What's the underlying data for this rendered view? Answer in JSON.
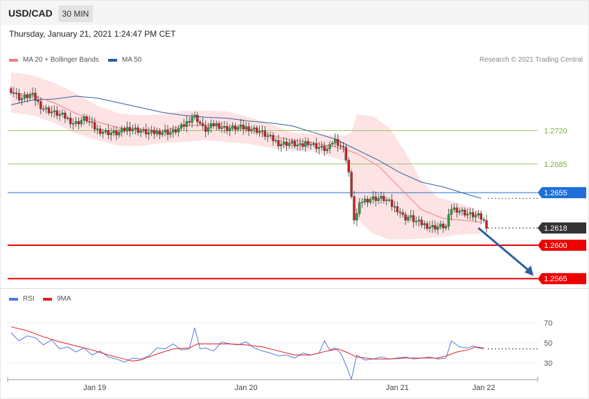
{
  "header": {
    "symbol": "USD/CAD",
    "timeframe": "30 MIN",
    "datetime": "Thursday, January 21, 2021 1:24:47 PM CET",
    "credit": "Research © 2021 Trading Central"
  },
  "legend": {
    "items": [
      {
        "label": "MA 20 + Bollinger Bands",
        "color": "#f08080"
      },
      {
        "label": "MA 50",
        "color": "#2e5f9e"
      }
    ]
  },
  "rsi_legend": {
    "items": [
      {
        "label": "RSI",
        "color": "#5577dd"
      },
      {
        "label": "9MA",
        "color": "#e02020"
      }
    ]
  },
  "chart_data": [
    {
      "type": "candlestick",
      "title": "USD/CAD",
      "x_ticks": [
        "Jan 19",
        "Jan 20",
        "Jan 21",
        "Jan 22"
      ],
      "ylim": [
        1.2555,
        1.279
      ],
      "levels": [
        {
          "value": 1.272,
          "label": "1.2720",
          "style": "resistance",
          "color": "#7cb342"
        },
        {
          "value": 1.2685,
          "label": "1.2685",
          "style": "resistance",
          "color": "#7cb342"
        },
        {
          "value": 1.2655,
          "label": "1.2655",
          "style": "pivot",
          "color": "#1e6fd9"
        },
        {
          "value": 1.2618,
          "label": "1.2618",
          "style": "last-price",
          "color": "#333333"
        },
        {
          "value": 1.26,
          "label": "1.2600",
          "style": "support",
          "color": "#ee0000"
        },
        {
          "value": 1.2565,
          "label": "1.2565",
          "style": "support",
          "color": "#ee0000"
        }
      ],
      "close_path": [
        [
          0,
          1.2764
        ],
        [
          4,
          1.2753
        ],
        [
          8,
          1.2758
        ],
        [
          12,
          1.2744
        ],
        [
          16,
          1.2739
        ],
        [
          20,
          1.2735
        ],
        [
          24,
          1.2727
        ],
        [
          28,
          1.2733
        ],
        [
          32,
          1.2721
        ],
        [
          36,
          1.2718
        ],
        [
          40,
          1.2717
        ],
        [
          44,
          1.2723
        ],
        [
          48,
          1.272
        ],
        [
          52,
          1.2717
        ],
        [
          56,
          1.2719
        ],
        [
          60,
          1.2718
        ],
        [
          64,
          1.2724
        ],
        [
          68,
          1.2736
        ],
        [
          70,
          1.273
        ],
        [
          72,
          1.272
        ],
        [
          76,
          1.2727
        ],
        [
          80,
          1.2722
        ],
        [
          84,
          1.2723
        ],
        [
          88,
          1.2723
        ],
        [
          92,
          1.272
        ],
        [
          96,
          1.2713
        ],
        [
          100,
          1.2706
        ],
        [
          104,
          1.2707
        ],
        [
          108,
          1.2703
        ],
        [
          110,
          1.2709
        ],
        [
          112,
          1.2705
        ],
        [
          116,
          1.2701
        ],
        [
          118,
          1.27
        ],
        [
          120,
          1.2711
        ],
        [
          122,
          1.2706
        ],
        [
          124,
          1.2699
        ],
        [
          126,
          1.2669
        ],
        [
          127,
          1.2628
        ],
        [
          128,
          1.2628
        ],
        [
          130,
          1.2646
        ],
        [
          134,
          1.2649
        ],
        [
          138,
          1.2649
        ],
        [
          140,
          1.2646
        ],
        [
          142,
          1.264
        ],
        [
          144,
          1.2637
        ],
        [
          146,
          1.2628
        ],
        [
          148,
          1.263
        ],
        [
          150,
          1.2625
        ],
        [
          154,
          1.2621
        ],
        [
          156,
          1.2619
        ],
        [
          158,
          1.2619
        ],
        [
          160,
          1.262
        ],
        [
          162,
          1.2619
        ],
        [
          163,
          1.2639
        ],
        [
          166,
          1.2637
        ],
        [
          170,
          1.2632
        ],
        [
          174,
          1.263
        ],
        [
          176,
          1.2623
        ],
        [
          177,
          1.2618
        ]
      ],
      "ma50_path": [
        [
          0,
          1.2747
        ],
        [
          8,
          1.2752
        ],
        [
          16,
          1.2753
        ],
        [
          24,
          1.2756
        ],
        [
          32,
          1.2754
        ],
        [
          40,
          1.2749
        ],
        [
          48,
          1.2744
        ],
        [
          56,
          1.2739
        ],
        [
          64,
          1.2736
        ],
        [
          72,
          1.2734
        ],
        [
          80,
          1.2733
        ],
        [
          88,
          1.273
        ],
        [
          96,
          1.2728
        ],
        [
          104,
          1.2725
        ],
        [
          112,
          1.2718
        ],
        [
          120,
          1.2711
        ],
        [
          128,
          1.27
        ],
        [
          136,
          1.2689
        ],
        [
          144,
          1.2676
        ],
        [
          152,
          1.2666
        ],
        [
          160,
          1.2661
        ],
        [
          168,
          1.2654
        ],
        [
          174,
          1.2649
        ]
      ],
      "ma20_path": [
        [
          0,
          1.276
        ],
        [
          8,
          1.2757
        ],
        [
          16,
          1.2749
        ],
        [
          24,
          1.2738
        ],
        [
          32,
          1.2729
        ],
        [
          40,
          1.2723
        ],
        [
          48,
          1.2721
        ],
        [
          56,
          1.272
        ],
        [
          64,
          1.2725
        ],
        [
          72,
          1.2726
        ],
        [
          80,
          1.2724
        ],
        [
          88,
          1.2721
        ],
        [
          96,
          1.2715
        ],
        [
          104,
          1.271
        ],
        [
          112,
          1.2707
        ],
        [
          120,
          1.2703
        ],
        [
          124,
          1.27
        ],
        [
          128,
          1.2696
        ],
        [
          136,
          1.2683
        ],
        [
          144,
          1.266
        ],
        [
          152,
          1.2637
        ],
        [
          160,
          1.2628
        ],
        [
          168,
          1.2626
        ],
        [
          174,
          1.2624
        ]
      ],
      "bb_upper_path": [
        [
          0,
          1.2781
        ],
        [
          8,
          1.2778
        ],
        [
          16,
          1.277
        ],
        [
          24,
          1.2759
        ],
        [
          32,
          1.2746
        ],
        [
          40,
          1.2738
        ],
        [
          48,
          1.2736
        ],
        [
          56,
          1.2737
        ],
        [
          64,
          1.2741
        ],
        [
          72,
          1.2741
        ],
        [
          80,
          1.274
        ],
        [
          88,
          1.2734
        ],
        [
          96,
          1.2727
        ],
        [
          104,
          1.2718
        ],
        [
          112,
          1.2716
        ],
        [
          120,
          1.2715
        ],
        [
          124,
          1.2715
        ],
        [
          126,
          1.2718
        ],
        [
          128,
          1.2737
        ],
        [
          134,
          1.2735
        ],
        [
          140,
          1.2723
        ],
        [
          146,
          1.2697
        ],
        [
          152,
          1.2667
        ],
        [
          158,
          1.265
        ],
        [
          166,
          1.2644
        ],
        [
          172,
          1.2637
        ],
        [
          174,
          1.2635
        ]
      ],
      "bb_lower_path": [
        [
          0,
          1.2739
        ],
        [
          8,
          1.2736
        ],
        [
          16,
          1.2728
        ],
        [
          24,
          1.2717
        ],
        [
          32,
          1.271
        ],
        [
          40,
          1.2704
        ],
        [
          48,
          1.2704
        ],
        [
          56,
          1.2707
        ],
        [
          64,
          1.2708
        ],
        [
          72,
          1.271
        ],
        [
          80,
          1.2708
        ],
        [
          88,
          1.2706
        ],
        [
          96,
          1.2702
        ],
        [
          104,
          1.2699
        ],
        [
          112,
          1.2698
        ],
        [
          120,
          1.2691
        ],
        [
          124,
          1.2688
        ],
        [
          126,
          1.267
        ],
        [
          128,
          1.2628
        ],
        [
          134,
          1.2612
        ],
        [
          140,
          1.2606
        ],
        [
          146,
          1.2606
        ],
        [
          152,
          1.2607
        ],
        [
          158,
          1.2608
        ],
        [
          166,
          1.2611
        ],
        [
          172,
          1.2612
        ],
        [
          174,
          1.2612
        ]
      ],
      "forecast_arrow": {
        "from": [
          173,
          1.2618
        ],
        "to": [
          188,
          1.2565
        ]
      }
    },
    {
      "type": "line",
      "title": "RSI",
      "ylim": [
        15,
        85
      ],
      "y_ticks": [
        30,
        50,
        70
      ],
      "series": [
        {
          "name": "RSI",
          "color": "#5577dd",
          "points": [
            [
              0,
              60
            ],
            [
              3,
              52
            ],
            [
              6,
              57
            ],
            [
              9,
              55
            ],
            [
              12,
              48
            ],
            [
              15,
              53
            ],
            [
              18,
              44
            ],
            [
              21,
              46
            ],
            [
              24,
              41
            ],
            [
              27,
              45
            ],
            [
              30,
              38
            ],
            [
              33,
              42
            ],
            [
              36,
              36
            ],
            [
              39,
              34
            ],
            [
              42,
              31
            ],
            [
              45,
              35
            ],
            [
              48,
              34
            ],
            [
              51,
              37
            ],
            [
              54,
              45
            ],
            [
              57,
              44
            ],
            [
              60,
              49
            ],
            [
              63,
              43
            ],
            [
              66,
              44
            ],
            [
              68,
              65
            ],
            [
              70,
              44
            ],
            [
              72,
              45
            ],
            [
              75,
              42
            ],
            [
              78,
              51
            ],
            [
              81,
              49
            ],
            [
              84,
              48
            ],
            [
              87,
              51
            ],
            [
              90,
              45
            ],
            [
              93,
              42
            ],
            [
              96,
              40
            ],
            [
              99,
              37
            ],
            [
              102,
              38
            ],
            [
              105,
              35
            ],
            [
              108,
              40
            ],
            [
              111,
              38
            ],
            [
              114,
              40
            ],
            [
              116,
              52
            ],
            [
              118,
              43
            ],
            [
              120,
              45
            ],
            [
              122,
              40
            ],
            [
              124,
              28
            ],
            [
              126,
              14
            ],
            [
              128,
              38
            ],
            [
              131,
              33
            ],
            [
              134,
              34
            ],
            [
              137,
              36
            ],
            [
              140,
              34
            ],
            [
              143,
              35
            ],
            [
              146,
              36
            ],
            [
              149,
              34
            ],
            [
              152,
              35
            ],
            [
              155,
              36
            ],
            [
              158,
              34
            ],
            [
              161,
              35
            ],
            [
              163,
              52
            ],
            [
              166,
              46
            ],
            [
              169,
              45
            ],
            [
              171,
              47
            ],
            [
              173,
              45
            ],
            [
              175,
              44
            ]
          ]
        },
        {
          "name": "9MA",
          "color": "#e02020",
          "points": [
            [
              0,
              66
            ],
            [
              6,
              62
            ],
            [
              12,
              56
            ],
            [
              18,
              51
            ],
            [
              24,
              47
            ],
            [
              30,
              43
            ],
            [
              36,
              38
            ],
            [
              42,
              34
            ],
            [
              45,
              32
            ],
            [
              48,
              33
            ],
            [
              54,
              39
            ],
            [
              60,
              44
            ],
            [
              66,
              45
            ],
            [
              69,
              49
            ],
            [
              75,
              49
            ],
            [
              81,
              49
            ],
            [
              87,
              48
            ],
            [
              93,
              46
            ],
            [
              99,
              42
            ],
            [
              105,
              38
            ],
            [
              111,
              38
            ],
            [
              117,
              42
            ],
            [
              121,
              44
            ],
            [
              124,
              41
            ],
            [
              128,
              36
            ],
            [
              134,
              34
            ],
            [
              140,
              34
            ],
            [
              146,
              35
            ],
            [
              152,
              35
            ],
            [
              158,
              35
            ],
            [
              161,
              37
            ],
            [
              165,
              41
            ],
            [
              169,
              43
            ],
            [
              172,
              46
            ],
            [
              175,
              45
            ]
          ]
        }
      ]
    }
  ]
}
